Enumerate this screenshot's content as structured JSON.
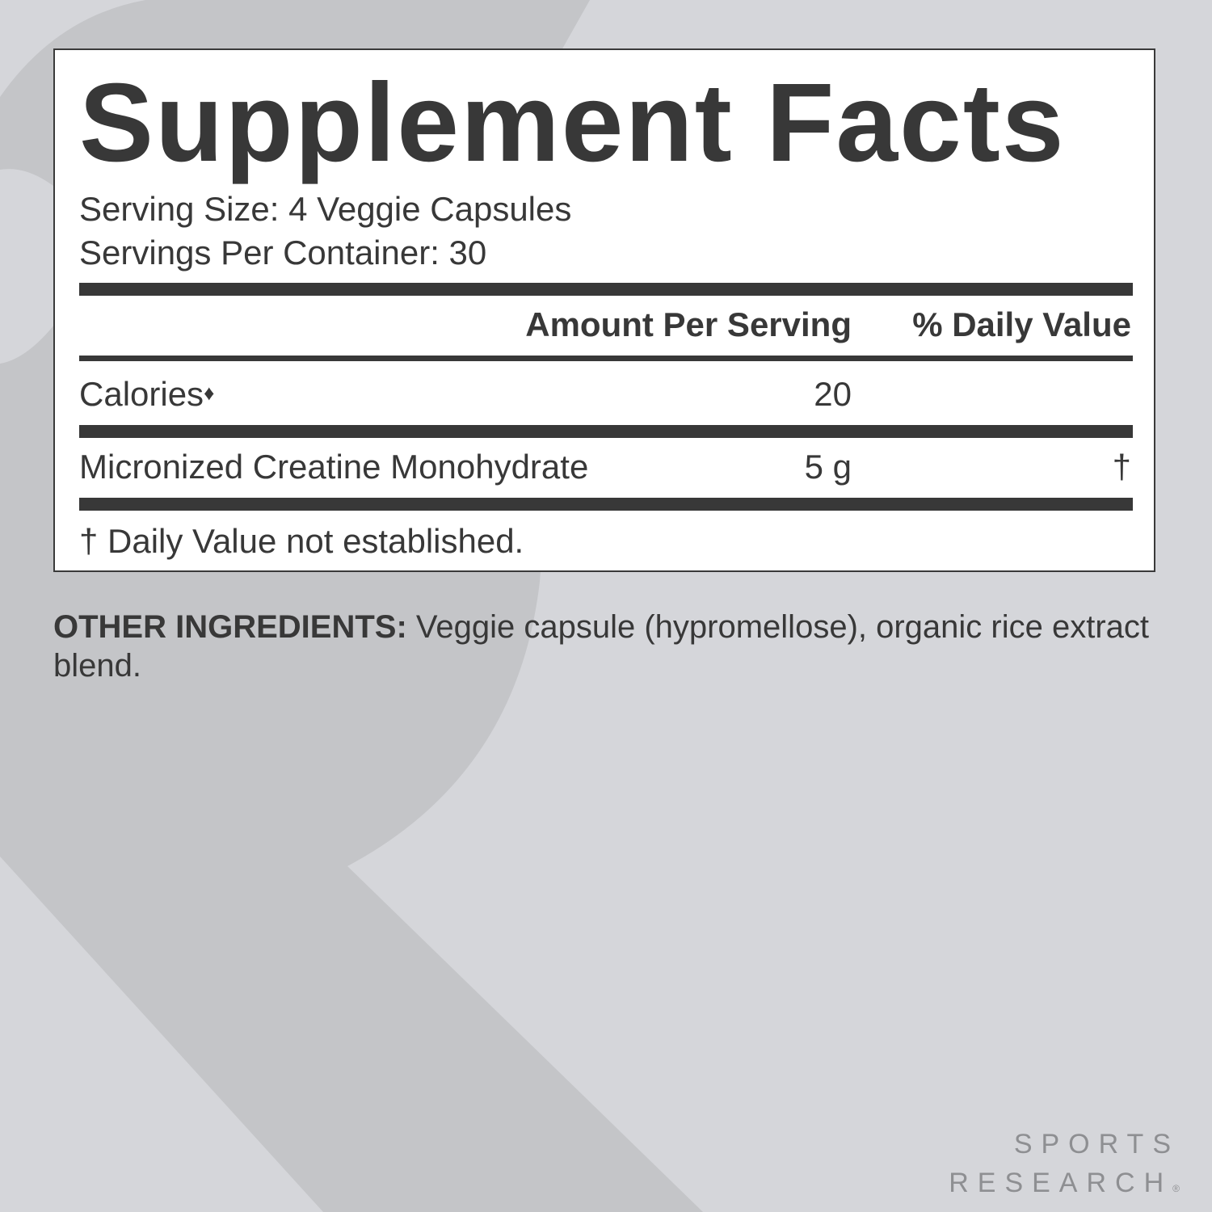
{
  "colors": {
    "background": "#d5d6da",
    "watermark": "#c4c5c8",
    "text": "#383838",
    "panel": "#ffffff",
    "logo": "#8e8f92"
  },
  "facts": {
    "title": "Supplement Facts",
    "serving_size": "Serving Size: 4 Veggie Capsules",
    "servings_per_container": "Servings Per Container: 30",
    "header_amount": "Amount Per Serving",
    "header_dv": "% Daily Value",
    "rows": [
      {
        "name": "Calories",
        "mark": "♦",
        "amount": "20",
        "dv": ""
      },
      {
        "name": "Micronized Creatine Monohydrate",
        "amount": "5 g",
        "dv": "†"
      }
    ],
    "footnote": "† Daily Value not established."
  },
  "other_ingredients": {
    "label": "OTHER INGREDIENTS:",
    "text": " Veggie capsule (hypromellose), organic rice extract blend."
  },
  "logo": {
    "line1": "SPORTS",
    "line2": "RESEARCH",
    "mark": "®"
  }
}
